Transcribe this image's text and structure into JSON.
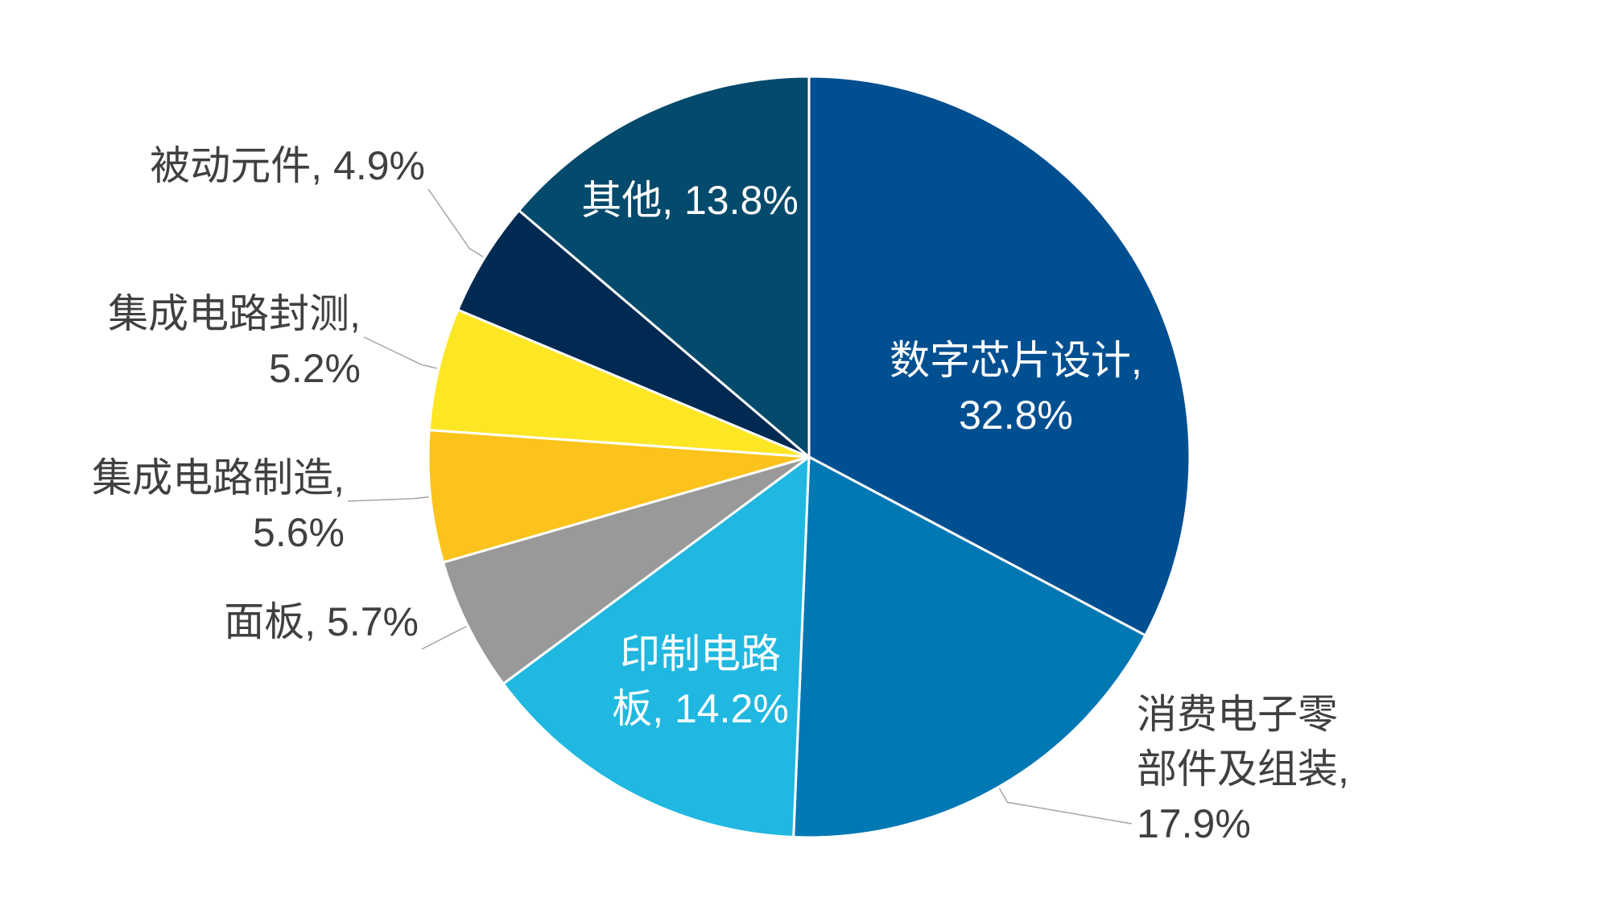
{
  "chart_data": {
    "type": "pie",
    "title": "",
    "start_angle_deg": 0,
    "direction": "clockwise",
    "slices": [
      {
        "label": "数字芯片设计",
        "value": 32.8,
        "value_label": "32.8%",
        "color": "#004f91",
        "label_lines": [
          "数字芯片设计,",
          "32.8%"
        ],
        "label_inside": true,
        "label_color": "#ffffff"
      },
      {
        "label": "消费电子零部件及组装",
        "value": 17.9,
        "value_label": "17.9%",
        "color": "#0078b4",
        "label_lines": [
          "消费电子零",
          "部件及组装,",
          "17.9%"
        ],
        "label_inside": false,
        "label_color": "#404040"
      },
      {
        "label": "印制电路板",
        "value": 14.2,
        "value_label": "14.2%",
        "color": "#20b8e0",
        "label_lines": [
          "印制电路",
          "板, 14.2%"
        ],
        "label_inside": true,
        "label_color": "#ffffff"
      },
      {
        "label": "面板",
        "value": 5.7,
        "value_label": "5.7%",
        "color": "#999999",
        "label_lines": [
          "面板, 5.7%"
        ],
        "label_inside": false,
        "label_color": "#404040"
      },
      {
        "label": "集成电路制造",
        "value": 5.6,
        "value_label": "5.6%",
        "color": "#fbc31b",
        "label_lines": [
          "集成电路制造,",
          "5.6%"
        ],
        "label_inside": false,
        "label_color": "#404040"
      },
      {
        "label": "集成电路封测",
        "value": 5.2,
        "value_label": "5.2%",
        "color": "#fde725",
        "label_lines": [
          "集成电路封测,",
          "5.2%"
        ],
        "label_inside": false,
        "label_color": "#404040"
      },
      {
        "label": "被动元件",
        "value": 4.9,
        "value_label": "4.9%",
        "color": "#002a52",
        "label_lines": [
          "被动元件, 4.9%"
        ],
        "label_inside": false,
        "label_color": "#404040"
      },
      {
        "label": "其他",
        "value": 13.8,
        "value_label": "13.8%",
        "color": "#044a6c",
        "label_lines": [
          "其他, 13.8%"
        ],
        "label_inside": true,
        "label_color": "#ffffff"
      }
    ],
    "legend": "none",
    "leader_line_color": "#a6a6a6"
  }
}
